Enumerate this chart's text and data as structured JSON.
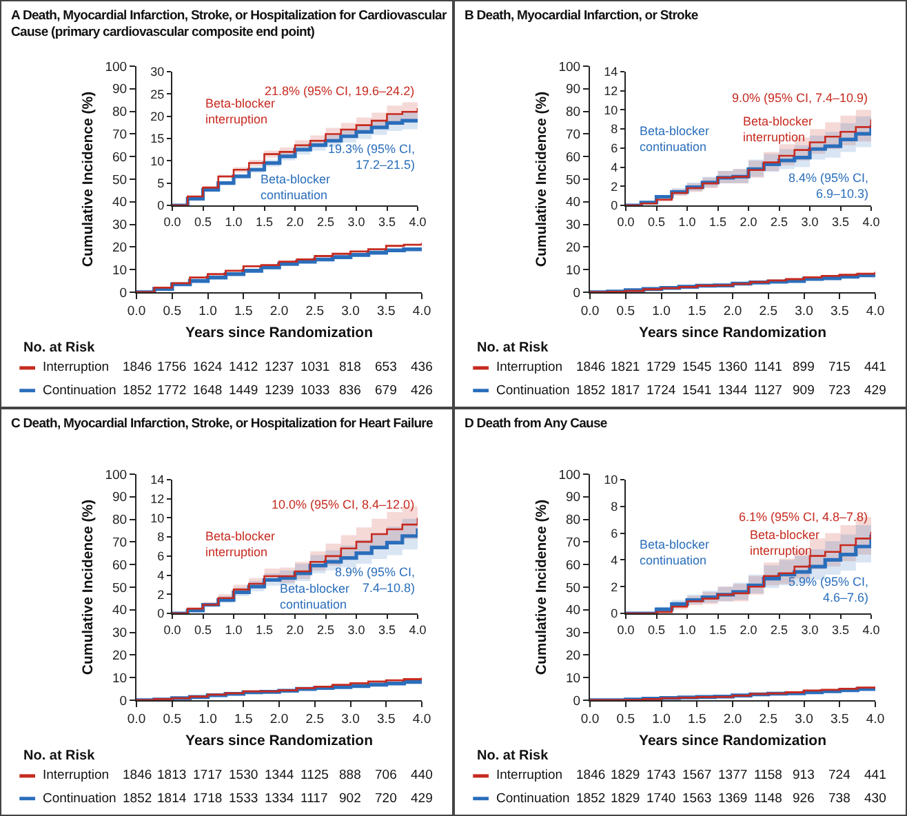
{
  "chart_data": [
    {
      "type": "step",
      "title": "A Death, Myocardial Infarction, Stroke, or Hospitalization for Cardiovascular Cause (primary cardiovascular composite end point)",
      "xlabel": "Years since Randomization",
      "ylabel": "Cumulative Incidence (%)",
      "legend": "bottom left",
      "xlim": [
        0,
        4
      ],
      "xticks": [
        {
          "value": 0,
          "label": "0.0"
        },
        {
          "value": 0.5,
          "label": "0.5"
        },
        {
          "value": 1,
          "label": "1.0"
        },
        {
          "value": 1.5,
          "label": "1.5"
        },
        {
          "value": 2,
          "label": "2.0"
        },
        {
          "value": 2.5,
          "label": "2.5"
        },
        {
          "value": 3,
          "label": "3.0"
        },
        {
          "value": 3.5,
          "label": "3.5"
        },
        {
          "value": 4,
          "label": "4.0"
        }
      ],
      "ylim": [
        0,
        100
      ],
      "yticks": [
        0,
        10,
        20,
        30,
        40,
        50,
        60,
        70,
        80,
        90,
        100
      ],
      "x": [
        0,
        0.25,
        0.5,
        0.75,
        1,
        1.25,
        1.5,
        1.75,
        2,
        2.25,
        2.5,
        2.75,
        3,
        3.25,
        3.5,
        3.75,
        4
      ],
      "series": [
        {
          "name": "Interruption",
          "color": "#c62a1f",
          "values": [
            0,
            2,
            4,
            6.5,
            8,
            9.5,
            11.5,
            12,
            13.5,
            14.5,
            16,
            17,
            18,
            19,
            20.5,
            21,
            21.8
          ]
        },
        {
          "name": "Continuation",
          "color": "#2a6ebb",
          "values": [
            0,
            1.5,
            3.5,
            5,
            6.5,
            8,
            9.5,
            11,
            12.5,
            13.5,
            14.5,
            15.5,
            16.5,
            17.5,
            18.5,
            19,
            19.3
          ]
        }
      ],
      "annotations": [
        "No. at Risk",
        "1846",
        "1756",
        "1624",
        "1412",
        "1237",
        "1031",
        "818",
        "653",
        "436",
        "1852",
        "1772",
        "1648",
        "1449",
        "1239",
        "1033",
        "836",
        "679",
        "426"
      ]
    },
    {
      "type": "step",
      "xlim": [
        0,
        4
      ],
      "xticks": [
        {
          "value": 0,
          "label": "0.0"
        },
        {
          "value": 0.5,
          "label": "0.5"
        },
        {
          "value": 1,
          "label": "1.0"
        },
        {
          "value": 1.5,
          "label": "1.5"
        },
        {
          "value": 2,
          "label": "2.0"
        },
        {
          "value": 2.5,
          "label": "2.5"
        },
        {
          "value": 3,
          "label": "3.0"
        },
        {
          "value": 3.5,
          "label": "3.5"
        },
        {
          "value": 4,
          "label": "4.0"
        }
      ],
      "ylim": [
        0,
        30
      ],
      "yticks": [
        0,
        5,
        10,
        15,
        20,
        25,
        30
      ],
      "x": [
        0,
        0.25,
        0.5,
        0.75,
        1,
        1.25,
        1.5,
        1.75,
        2,
        2.25,
        2.5,
        2.75,
        3,
        3.25,
        3.5,
        3.75,
        4
      ],
      "series": [
        {
          "name": "Beta-blocker interruption",
          "color": "#c62a1f",
          "values": [
            0,
            2,
            4,
            6.5,
            8,
            9.5,
            11.5,
            12,
            13.5,
            14.5,
            16,
            17,
            18,
            19,
            20.5,
            21,
            21.8
          ],
          "lower": [
            0,
            1.9,
            3.7,
            6.1,
            7.4,
            8.8,
            10.7,
            11,
            12.4,
            13.3,
            14.6,
            15.5,
            16.3,
            17.2,
            18.6,
            18.9,
            19.6
          ],
          "upper": [
            0,
            2.1,
            4.3,
            6.9,
            8.6,
            10.2,
            12.3,
            13,
            14.6,
            15.7,
            17.4,
            18.5,
            19.7,
            20.8,
            22.4,
            23.1,
            24.2
          ]
        },
        {
          "name": "Beta-blocker continuation",
          "color": "#2a6ebb",
          "values": [
            0,
            1.5,
            3.5,
            5,
            6.5,
            8,
            9.5,
            11,
            12.5,
            13.5,
            14.5,
            15.5,
            16.5,
            17.5,
            18.5,
            19,
            19.3
          ],
          "lower": [
            0,
            1.4,
            3.2,
            4.6,
            6,
            7.3,
            8.7,
            10.1,
            11.4,
            12.3,
            13.2,
            14.1,
            14.9,
            15.8,
            16.7,
            17.1,
            17.2
          ],
          "upper": [
            0,
            1.6,
            3.8,
            5.4,
            7,
            8.7,
            10.3,
            11.9,
            13.6,
            14.7,
            15.8,
            16.9,
            18.1,
            19.2,
            20.3,
            20.9,
            21.5
          ]
        }
      ],
      "annotations": [
        "21.8% (95% CI, 19.6–24.2)",
        "19.3% (95% CI,\n17.2–21.5)"
      ]
    },
    {
      "type": "step",
      "title": "B Death, Myocardial Infarction, or Stroke",
      "xlabel": "Years since Randomization",
      "ylabel": "Cumulative Incidence (%)",
      "legend": "bottom left",
      "xlim": [
        0,
        4
      ],
      "xticks": [
        {
          "value": 0,
          "label": "0.0"
        },
        {
          "value": 0.5,
          "label": "0.5"
        },
        {
          "value": 1,
          "label": "1.0"
        },
        {
          "value": 1.5,
          "label": "1.5"
        },
        {
          "value": 2,
          "label": "2.0"
        },
        {
          "value": 2.5,
          "label": "2.5"
        },
        {
          "value": 3,
          "label": "3.0"
        },
        {
          "value": 3.5,
          "label": "3.5"
        },
        {
          "value": 4,
          "label": "4.0"
        }
      ],
      "ylim": [
        0,
        100
      ],
      "yticks": [
        0,
        10,
        20,
        30,
        40,
        50,
        60,
        70,
        80,
        90,
        100
      ],
      "x": [
        0,
        0.25,
        0.5,
        0.75,
        1,
        1.25,
        1.5,
        1.75,
        2,
        2.25,
        2.5,
        2.75,
        3,
        3.25,
        3.5,
        3.75,
        4
      ],
      "series": [
        {
          "name": "Interruption",
          "color": "#c62a1f",
          "values": [
            0,
            0.2,
            0.6,
            1.3,
            1.8,
            2.3,
            2.9,
            3.0,
            3.7,
            4.5,
            5.2,
            5.8,
            6.6,
            7.2,
            7.7,
            8.2,
            9.0
          ]
        },
        {
          "name": "Continuation",
          "color": "#2a6ebb",
          "values": [
            0,
            0.3,
            0.9,
            1.4,
            1.9,
            2.4,
            2.9,
            3.0,
            3.8,
            4.3,
            4.7,
            5.0,
            5.9,
            6.2,
            6.9,
            7.5,
            8.4
          ]
        }
      ],
      "annotations": [
        "No. at Risk",
        "1846",
        "1821",
        "1729",
        "1545",
        "1360",
        "1141",
        "899",
        "715",
        "441",
        "1852",
        "1817",
        "1724",
        "1541",
        "1344",
        "1127",
        "909",
        "723",
        "429"
      ]
    },
    {
      "type": "step",
      "xlim": [
        0,
        4
      ],
      "xticks": [
        {
          "value": 0,
          "label": "0.0"
        },
        {
          "value": 0.5,
          "label": "0.5"
        },
        {
          "value": 1,
          "label": "1.0"
        },
        {
          "value": 1.5,
          "label": "1.5"
        },
        {
          "value": 2,
          "label": "2.0"
        },
        {
          "value": 2.5,
          "label": "2.5"
        },
        {
          "value": 3,
          "label": "3.0"
        },
        {
          "value": 3.5,
          "label": "3.5"
        },
        {
          "value": 4,
          "label": "4.0"
        }
      ],
      "ylim": [
        0,
        14
      ],
      "yticks": [
        0,
        2,
        4,
        6,
        8,
        10,
        12,
        14
      ],
      "x": [
        0,
        0.25,
        0.5,
        0.75,
        1,
        1.25,
        1.5,
        1.75,
        2,
        2.25,
        2.5,
        2.75,
        3,
        3.25,
        3.5,
        3.75,
        4
      ],
      "series": [
        {
          "name": "Beta-blocker interruption",
          "color": "#c62a1f",
          "values": [
            0,
            0.2,
            0.6,
            1.3,
            1.8,
            2.3,
            2.9,
            3.0,
            3.7,
            4.5,
            5.2,
            5.8,
            6.6,
            7.2,
            7.7,
            8.2,
            9.0
          ],
          "lower": [
            0,
            0.1,
            0.4,
            1.0,
            1.4,
            1.8,
            2.3,
            2.3,
            2.9,
            3.6,
            4.2,
            4.7,
            5.4,
            5.9,
            6.3,
            6.7,
            7.4
          ],
          "upper": [
            0,
            0.3,
            0.8,
            1.7,
            2.3,
            2.9,
            3.6,
            3.8,
            4.7,
            5.6,
            6.4,
            7.1,
            8.0,
            8.7,
            9.4,
            10.0,
            10.9
          ]
        },
        {
          "name": "Beta-blocker continuation",
          "color": "#2a6ebb",
          "values": [
            0,
            0.3,
            0.9,
            1.4,
            1.9,
            2.4,
            2.9,
            3.0,
            3.8,
            4.3,
            4.7,
            5.0,
            5.9,
            6.2,
            6.9,
            7.5,
            8.4
          ],
          "lower": [
            0,
            0.2,
            0.7,
            1.1,
            1.5,
            1.9,
            2.3,
            2.3,
            3.0,
            3.5,
            3.8,
            4.0,
            4.8,
            5.0,
            5.6,
            6.1,
            6.9
          ],
          "upper": [
            0,
            0.4,
            1.1,
            1.8,
            2.4,
            3.0,
            3.6,
            3.8,
            4.8,
            5.4,
            5.9,
            6.3,
            7.3,
            7.7,
            8.6,
            9.3,
            10.3
          ]
        }
      ],
      "annotations": [
        "9.0% (95% CI, 7.4–10.9)",
        "8.4% (95% CI,\n6.9–10.3)"
      ]
    },
    {
      "type": "step",
      "title": "C Death, Myocardial Infarction, Stroke, or Hospitalization for Heart Failure",
      "xlabel": "Years since Randomization",
      "ylabel": "Cumulative Incidence (%)",
      "legend": "bottom left",
      "xlim": [
        0,
        4
      ],
      "xticks": [
        {
          "value": 0,
          "label": "0.0"
        },
        {
          "value": 0.5,
          "label": "0.5"
        },
        {
          "value": 1,
          "label": "1.0"
        },
        {
          "value": 1.5,
          "label": "1.5"
        },
        {
          "value": 2,
          "label": "2.0"
        },
        {
          "value": 2.5,
          "label": "2.5"
        },
        {
          "value": 3,
          "label": "3.0"
        },
        {
          "value": 3.5,
          "label": "3.5"
        },
        {
          "value": 4,
          "label": "4.0"
        }
      ],
      "ylim": [
        0,
        100
      ],
      "yticks": [
        0,
        10,
        20,
        30,
        40,
        50,
        60,
        70,
        80,
        90,
        100
      ],
      "x": [
        0,
        0.25,
        0.5,
        0.75,
        1,
        1.25,
        1.5,
        1.75,
        2,
        2.25,
        2.5,
        2.75,
        3,
        3.25,
        3.5,
        3.75,
        4
      ],
      "series": [
        {
          "name": "Interruption",
          "color": "#c62a1f",
          "values": [
            0,
            0.5,
            0.9,
            1.6,
            2.5,
            3.1,
            3.9,
            3.9,
            4.4,
            5.4,
            6.0,
            6.8,
            7.5,
            8.3,
            8.8,
            9.3,
            10.0
          ]
        },
        {
          "name": "Continuation",
          "color": "#2a6ebb",
          "values": [
            0,
            0.3,
            0.9,
            1.4,
            2.2,
            2.8,
            3.5,
            3.7,
            4.2,
            5.0,
            5.4,
            5.8,
            6.3,
            6.9,
            7.4,
            8.1,
            8.9
          ]
        }
      ],
      "annotations": [
        "No. at Risk",
        "1846",
        "1813",
        "1717",
        "1530",
        "1344",
        "1125",
        "888",
        "706",
        "440",
        "1852",
        "1814",
        "1718",
        "1533",
        "1334",
        "1117",
        "902",
        "720",
        "429"
      ]
    },
    {
      "type": "step",
      "xlim": [
        0,
        4
      ],
      "xticks": [
        {
          "value": 0,
          "label": "0.0"
        },
        {
          "value": 0.5,
          "label": "0.5"
        },
        {
          "value": 1,
          "label": "1.0"
        },
        {
          "value": 1.5,
          "label": "1.5"
        },
        {
          "value": 2,
          "label": "2.0"
        },
        {
          "value": 2.5,
          "label": "2.5"
        },
        {
          "value": 3,
          "label": "3.0"
        },
        {
          "value": 3.5,
          "label": "3.5"
        },
        {
          "value": 4,
          "label": "4.0"
        }
      ],
      "ylim": [
        0,
        14
      ],
      "yticks": [
        0,
        2,
        4,
        6,
        8,
        10,
        12,
        14
      ],
      "x": [
        0,
        0.25,
        0.5,
        0.75,
        1,
        1.25,
        1.5,
        1.75,
        2,
        2.25,
        2.5,
        2.75,
        3,
        3.25,
        3.5,
        3.75,
        4
      ],
      "series": [
        {
          "name": "Beta-blocker interruption",
          "color": "#c62a1f",
          "values": [
            0,
            0.5,
            0.9,
            1.6,
            2.5,
            3.1,
            3.9,
            3.9,
            4.4,
            5.4,
            6.0,
            6.8,
            7.5,
            8.3,
            8.8,
            9.3,
            10.0
          ],
          "lower": [
            0,
            0.4,
            0.7,
            1.3,
            2.1,
            2.6,
            3.3,
            3.2,
            3.6,
            4.5,
            5.0,
            5.7,
            6.3,
            7.0,
            7.4,
            7.8,
            8.4
          ],
          "upper": [
            0,
            0.6,
            1.2,
            2.0,
            3.0,
            3.7,
            4.7,
            4.8,
            5.4,
            6.5,
            7.3,
            8.2,
            9.0,
            9.9,
            10.6,
            11.2,
            12.0
          ]
        },
        {
          "name": "Beta-blocker continuation",
          "color": "#2a6ebb",
          "values": [
            0,
            0.3,
            0.9,
            1.4,
            2.2,
            2.8,
            3.5,
            3.7,
            4.2,
            5.0,
            5.4,
            5.8,
            6.3,
            6.9,
            7.4,
            8.1,
            8.9
          ],
          "lower": [
            0,
            0.2,
            0.7,
            1.1,
            1.8,
            2.3,
            2.9,
            3.0,
            3.4,
            4.2,
            4.5,
            4.8,
            5.2,
            5.7,
            6.1,
            6.7,
            7.4
          ],
          "upper": [
            0,
            0.4,
            1.1,
            1.8,
            2.7,
            3.4,
            4.2,
            4.5,
            5.2,
            6.1,
            6.6,
            7.1,
            7.7,
            8.4,
            9.1,
            9.9,
            10.8
          ]
        }
      ],
      "annotations": [
        "10.0% (95% CI, 8.4–12.0)",
        "8.9% (95% CI,\n7.4–10.8)"
      ]
    },
    {
      "type": "step",
      "title": "D Death from Any Cause",
      "xlabel": "Years since Randomization",
      "ylabel": "Cumulative Incidence (%)",
      "legend": "bottom left",
      "xlim": [
        0,
        4
      ],
      "xticks": [
        {
          "value": 0,
          "label": "0.0"
        },
        {
          "value": 0.5,
          "label": "0.5"
        },
        {
          "value": 1,
          "label": "1.0"
        },
        {
          "value": 1.5,
          "label": "1.5"
        },
        {
          "value": 2,
          "label": "2.0"
        },
        {
          "value": 2.5,
          "label": "2.5"
        },
        {
          "value": 3,
          "label": "3.0"
        },
        {
          "value": 3.5,
          "label": "3.5"
        },
        {
          "value": 4,
          "label": "4.0"
        }
      ],
      "ylim": [
        0,
        100
      ],
      "yticks": [
        0,
        10,
        20,
        30,
        40,
        50,
        60,
        70,
        80,
        90,
        100
      ],
      "x": [
        0,
        0.25,
        0.5,
        0.75,
        1,
        1.25,
        1.5,
        1.75,
        2,
        2.25,
        2.5,
        2.75,
        3,
        3.25,
        3.5,
        3.75,
        4
      ],
      "series": [
        {
          "name": "Interruption",
          "color": "#c62a1f",
          "values": [
            0,
            0,
            0.1,
            0.5,
            0.9,
            1.1,
            1.4,
            1.5,
            2.0,
            2.8,
            3.0,
            3.5,
            4.3,
            4.6,
            5.1,
            5.6,
            6.1
          ]
        },
        {
          "name": "Continuation",
          "color": "#2a6ebb",
          "values": [
            0,
            0,
            0.3,
            0.7,
            1.0,
            1.2,
            1.4,
            1.6,
            2.1,
            2.6,
            2.9,
            3.1,
            3.5,
            4.0,
            4.4,
            5.0,
            5.9
          ]
        }
      ],
      "annotations": [
        "No. at Risk",
        "1846",
        "1829",
        "1743",
        "1567",
        "1377",
        "1158",
        "913",
        "724",
        "441",
        "1852",
        "1829",
        "1740",
        "1563",
        "1369",
        "1148",
        "926",
        "738",
        "430"
      ]
    },
    {
      "type": "step",
      "xlim": [
        0,
        4
      ],
      "xticks": [
        {
          "value": 0,
          "label": "0.0"
        },
        {
          "value": 0.5,
          "label": "0.5"
        },
        {
          "value": 1,
          "label": "1.0"
        },
        {
          "value": 1.5,
          "label": "1.5"
        },
        {
          "value": 2,
          "label": "2.0"
        },
        {
          "value": 2.5,
          "label": "2.5"
        },
        {
          "value": 3,
          "label": "3.0"
        },
        {
          "value": 3.5,
          "label": "3.5"
        },
        {
          "value": 4,
          "label": "4.0"
        }
      ],
      "ylim": [
        0,
        10
      ],
      "yticks": [
        0,
        2,
        4,
        6,
        8,
        10
      ],
      "x": [
        0,
        0.25,
        0.5,
        0.75,
        1,
        1.25,
        1.5,
        1.75,
        2,
        2.25,
        2.5,
        2.75,
        3,
        3.25,
        3.5,
        3.75,
        4
      ],
      "series": [
        {
          "name": "Beta-blocker interruption",
          "color": "#c62a1f",
          "values": [
            0,
            0,
            0.1,
            0.5,
            0.9,
            1.1,
            1.4,
            1.5,
            2.0,
            2.8,
            3.0,
            3.5,
            4.3,
            4.6,
            5.1,
            5.6,
            6.1
          ],
          "lower": [
            0,
            0,
            0,
            0.3,
            0.6,
            0.7,
            0.9,
            0.9,
            1.4,
            2.1,
            2.2,
            2.6,
            3.3,
            3.5,
            3.9,
            4.4,
            4.8
          ],
          "upper": [
            0,
            0.1,
            0.3,
            0.8,
            1.3,
            1.6,
            2.0,
            2.2,
            2.8,
            3.8,
            4.1,
            4.7,
            5.6,
            6.0,
            6.6,
            7.2,
            7.8
          ]
        },
        {
          "name": "Beta-blocker continuation",
          "color": "#2a6ebb",
          "values": [
            0,
            0,
            0.3,
            0.7,
            1.0,
            1.2,
            1.4,
            1.6,
            2.1,
            2.6,
            2.9,
            3.1,
            3.5,
            4.0,
            4.4,
            5.0,
            5.9
          ],
          "lower": [
            0,
            0,
            0.1,
            0.5,
            0.7,
            0.8,
            0.9,
            1.0,
            1.5,
            1.9,
            2.1,
            2.2,
            2.5,
            2.9,
            3.2,
            3.8,
            4.6
          ],
          "upper": [
            0,
            0.1,
            0.5,
            1.0,
            1.4,
            1.7,
            2.0,
            2.3,
            2.9,
            3.6,
            4.0,
            4.3,
            4.8,
            5.4,
            5.9,
            6.6,
            7.6
          ]
        }
      ],
      "annotations": [
        "6.1% (95% CI, 4.8–7.8)",
        "5.9% (95% CI,\n4.6–7.6)"
      ]
    }
  ]
}
